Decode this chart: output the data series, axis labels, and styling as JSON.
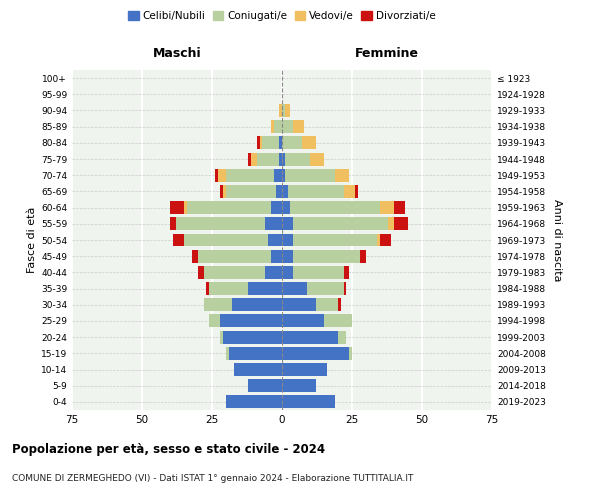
{
  "age_groups": [
    "0-4",
    "5-9",
    "10-14",
    "15-19",
    "20-24",
    "25-29",
    "30-34",
    "35-39",
    "40-44",
    "45-49",
    "50-54",
    "55-59",
    "60-64",
    "65-69",
    "70-74",
    "75-79",
    "80-84",
    "85-89",
    "90-94",
    "95-99",
    "100+"
  ],
  "birth_years": [
    "2019-2023",
    "2014-2018",
    "2009-2013",
    "2004-2008",
    "1999-2003",
    "1994-1998",
    "1989-1993",
    "1984-1988",
    "1979-1983",
    "1974-1978",
    "1969-1973",
    "1964-1968",
    "1959-1963",
    "1954-1958",
    "1949-1953",
    "1944-1948",
    "1939-1943",
    "1934-1938",
    "1929-1933",
    "1924-1928",
    "≤ 1923"
  ],
  "colors": {
    "celibi": "#4472c4",
    "coniugati": "#b8cfa0",
    "vedovi": "#f0c060",
    "divorziati": "#cc1111"
  },
  "males": {
    "celibi": [
      20,
      12,
      17,
      19,
      21,
      22,
      18,
      12,
      6,
      4,
      5,
      6,
      4,
      2,
      3,
      1,
      1,
      0,
      0,
      0,
      0
    ],
    "coniugati": [
      0,
      0,
      0,
      1,
      1,
      4,
      10,
      14,
      22,
      26,
      30,
      32,
      30,
      18,
      17,
      8,
      6,
      3,
      0,
      0,
      0
    ],
    "vedovi": [
      0,
      0,
      0,
      0,
      0,
      0,
      0,
      0,
      0,
      0,
      0,
      0,
      1,
      1,
      3,
      2,
      1,
      1,
      1,
      0,
      0
    ],
    "divorziati": [
      0,
      0,
      0,
      0,
      0,
      0,
      0,
      1,
      2,
      2,
      4,
      2,
      5,
      1,
      1,
      1,
      1,
      0,
      0,
      0,
      0
    ]
  },
  "females": {
    "celibi": [
      19,
      12,
      16,
      24,
      20,
      15,
      12,
      9,
      4,
      4,
      4,
      4,
      3,
      2,
      1,
      1,
      0,
      0,
      0,
      0,
      0
    ],
    "coniugati": [
      0,
      0,
      0,
      1,
      3,
      10,
      8,
      13,
      18,
      24,
      30,
      34,
      32,
      20,
      18,
      9,
      7,
      4,
      1,
      0,
      0
    ],
    "vedovi": [
      0,
      0,
      0,
      0,
      0,
      0,
      0,
      0,
      0,
      0,
      1,
      2,
      5,
      4,
      5,
      5,
      5,
      4,
      2,
      0,
      0
    ],
    "divorziati": [
      0,
      0,
      0,
      0,
      0,
      0,
      1,
      1,
      2,
      2,
      4,
      5,
      4,
      1,
      0,
      0,
      0,
      0,
      0,
      0,
      0
    ]
  },
  "xlim": 75,
  "xlabel_left": "Maschi",
  "xlabel_right": "Femmine",
  "ylabel_left": "Fasce di età",
  "ylabel_right": "Anni di nascita",
  "title_main": "Popolazione per età, sesso e stato civile - 2024",
  "title_sub": "COMUNE DI ZERMEGHEDO (VI) - Dati ISTAT 1° gennaio 2024 - Elaborazione TUTTITALIA.IT",
  "legend_labels": [
    "Celibi/Nubili",
    "Coniugati/e",
    "Vedovi/e",
    "Divorziati/e"
  ],
  "bg_color": "#f0f4ee"
}
